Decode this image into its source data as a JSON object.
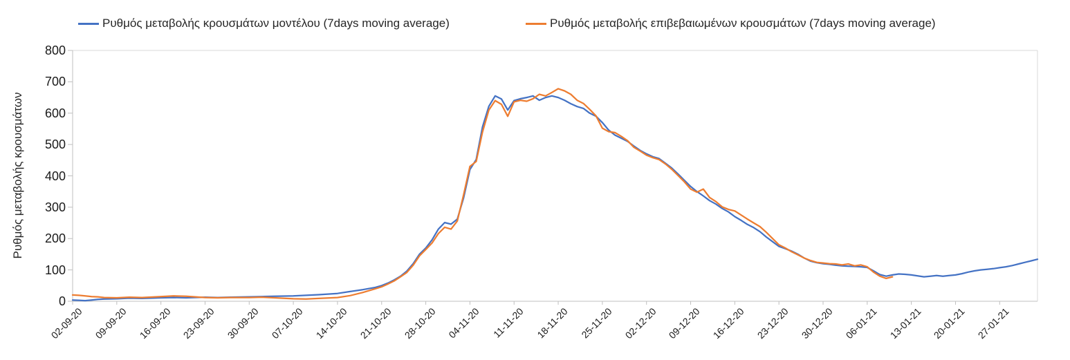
{
  "chart_data": {
    "type": "line",
    "title": "",
    "xlabel": "",
    "ylabel": "Ρυθμός μεταβολής κρουσμάτων",
    "ylim": [
      0,
      800
    ],
    "yticks": [
      0,
      100,
      200,
      300,
      400,
      500,
      600,
      700,
      800
    ],
    "x_domain_days": [
      0,
      153
    ],
    "x_ticks": [
      {
        "label": "02-09-20",
        "day": 0
      },
      {
        "label": "09-09-20",
        "day": 7
      },
      {
        "label": "16-09-20",
        "day": 14
      },
      {
        "label": "23-09-20",
        "day": 21
      },
      {
        "label": "30-09-20",
        "day": 28
      },
      {
        "label": "07-10-20",
        "day": 35
      },
      {
        "label": "14-10-20",
        "day": 42
      },
      {
        "label": "21-10-20",
        "day": 49
      },
      {
        "label": "28-10-20",
        "day": 56
      },
      {
        "label": "04-11-20",
        "day": 63
      },
      {
        "label": "11-11-20",
        "day": 70
      },
      {
        "label": "18-11-20",
        "day": 77
      },
      {
        "label": "25-11-20",
        "day": 84
      },
      {
        "label": "02-12-20",
        "day": 91
      },
      {
        "label": "09-12-20",
        "day": 98
      },
      {
        "label": "16-12-20",
        "day": 105
      },
      {
        "label": "23-12-20",
        "day": 112
      },
      {
        "label": "30-12-20",
        "day": 119
      },
      {
        "label": "06-01-21",
        "day": 126
      },
      {
        "label": "13-01-21",
        "day": 133
      },
      {
        "label": "20-01-21",
        "day": 140
      },
      {
        "label": "27-01-21",
        "day": 147
      }
    ],
    "legend_position": "top",
    "grid": "top-line-only",
    "series": [
      {
        "name": "Ρυθμός μεταβολής κρουσμάτων μοντέλου (7days moving average)",
        "color": "#4472c4",
        "points": [
          [
            0,
            4
          ],
          [
            1,
            3
          ],
          [
            2,
            2
          ],
          [
            3,
            4
          ],
          [
            4,
            6
          ],
          [
            5,
            7
          ],
          [
            7,
            8
          ],
          [
            9,
            10
          ],
          [
            11,
            9
          ],
          [
            14,
            11
          ],
          [
            16,
            12
          ],
          [
            18,
            11
          ],
          [
            21,
            13
          ],
          [
            23,
            12
          ],
          [
            25,
            13
          ],
          [
            28,
            14
          ],
          [
            30,
            15
          ],
          [
            32,
            16
          ],
          [
            35,
            17
          ],
          [
            37,
            19
          ],
          [
            39,
            21
          ],
          [
            42,
            25
          ],
          [
            44,
            31
          ],
          [
            46,
            37
          ],
          [
            48,
            44
          ],
          [
            49,
            50
          ],
          [
            50,
            58
          ],
          [
            51,
            68
          ],
          [
            52,
            80
          ],
          [
            53,
            96
          ],
          [
            54,
            120
          ],
          [
            55,
            150
          ],
          [
            56,
            170
          ],
          [
            57,
            196
          ],
          [
            58,
            230
          ],
          [
            59,
            251
          ],
          [
            60,
            246
          ],
          [
            61,
            262
          ],
          [
            62,
            330
          ],
          [
            63,
            420
          ],
          [
            64,
            452
          ],
          [
            65,
            556
          ],
          [
            66,
            622
          ],
          [
            67,
            655
          ],
          [
            68,
            645
          ],
          [
            69,
            610
          ],
          [
            70,
            640
          ],
          [
            71,
            646
          ],
          [
            72,
            650
          ],
          [
            73,
            655
          ],
          [
            74,
            641
          ],
          [
            75,
            650
          ],
          [
            76,
            655
          ],
          [
            77,
            650
          ],
          [
            78,
            641
          ],
          [
            79,
            630
          ],
          [
            80,
            621
          ],
          [
            81,
            615
          ],
          [
            82,
            600
          ],
          [
            83,
            590
          ],
          [
            84,
            570
          ],
          [
            85,
            546
          ],
          [
            86,
            530
          ],
          [
            87,
            520
          ],
          [
            88,
            510
          ],
          [
            89,
            495
          ],
          [
            90,
            481
          ],
          [
            91,
            470
          ],
          [
            92,
            461
          ],
          [
            93,
            455
          ],
          [
            94,
            440
          ],
          [
            95,
            425
          ],
          [
            96,
            406
          ],
          [
            97,
            386
          ],
          [
            98,
            366
          ],
          [
            99,
            350
          ],
          [
            100,
            336
          ],
          [
            101,
            321
          ],
          [
            102,
            310
          ],
          [
            103,
            296
          ],
          [
            104,
            285
          ],
          [
            105,
            270
          ],
          [
            106,
            258
          ],
          [
            107,
            245
          ],
          [
            108,
            235
          ],
          [
            109,
            222
          ],
          [
            110,
            205
          ],
          [
            111,
            190
          ],
          [
            112,
            175
          ],
          [
            113,
            168
          ],
          [
            114,
            160
          ],
          [
            115,
            150
          ],
          [
            116,
            138
          ],
          [
            117,
            128
          ],
          [
            118,
            123
          ],
          [
            119,
            120
          ],
          [
            120,
            118
          ],
          [
            121,
            115
          ],
          [
            122,
            113
          ],
          [
            123,
            112
          ],
          [
            124,
            111
          ],
          [
            125,
            110
          ],
          [
            126,
            108
          ],
          [
            127,
            97
          ],
          [
            128,
            85
          ],
          [
            129,
            80
          ],
          [
            130,
            84
          ],
          [
            131,
            87
          ],
          [
            132,
            86
          ],
          [
            133,
            84
          ],
          [
            134,
            81
          ],
          [
            135,
            78
          ],
          [
            136,
            80
          ],
          [
            137,
            82
          ],
          [
            138,
            80
          ],
          [
            139,
            82
          ],
          [
            140,
            84
          ],
          [
            141,
            88
          ],
          [
            142,
            93
          ],
          [
            143,
            97
          ],
          [
            144,
            100
          ],
          [
            145,
            102
          ],
          [
            146,
            104
          ],
          [
            147,
            107
          ],
          [
            148,
            110
          ],
          [
            149,
            114
          ],
          [
            150,
            119
          ],
          [
            151,
            124
          ],
          [
            152,
            129
          ],
          [
            153,
            134
          ]
        ]
      },
      {
        "name": "Ρυθμός μεταβολής επιβεβαιωμένων κρουσμάτων (7days moving average)",
        "color": "#ed7d31",
        "points": [
          [
            0,
            20
          ],
          [
            1,
            19
          ],
          [
            2,
            17
          ],
          [
            3,
            15
          ],
          [
            4,
            14
          ],
          [
            5,
            12
          ],
          [
            7,
            11
          ],
          [
            9,
            13
          ],
          [
            11,
            12
          ],
          [
            14,
            15
          ],
          [
            16,
            17
          ],
          [
            18,
            16
          ],
          [
            21,
            12
          ],
          [
            23,
            11
          ],
          [
            25,
            12
          ],
          [
            28,
            12
          ],
          [
            30,
            13
          ],
          [
            32,
            11
          ],
          [
            35,
            8
          ],
          [
            37,
            7
          ],
          [
            39,
            9
          ],
          [
            42,
            12
          ],
          [
            44,
            18
          ],
          [
            46,
            28
          ],
          [
            48,
            40
          ],
          [
            49,
            46
          ],
          [
            50,
            55
          ],
          [
            51,
            65
          ],
          [
            52,
            78
          ],
          [
            53,
            92
          ],
          [
            54,
            115
          ],
          [
            55,
            145
          ],
          [
            56,
            165
          ],
          [
            57,
            186
          ],
          [
            58,
            216
          ],
          [
            59,
            236
          ],
          [
            60,
            230
          ],
          [
            61,
            256
          ],
          [
            62,
            340
          ],
          [
            63,
            430
          ],
          [
            64,
            446
          ],
          [
            65,
            540
          ],
          [
            66,
            610
          ],
          [
            67,
            640
          ],
          [
            68,
            628
          ],
          [
            69,
            590
          ],
          [
            70,
            636
          ],
          [
            71,
            641
          ],
          [
            72,
            638
          ],
          [
            73,
            646
          ],
          [
            74,
            660
          ],
          [
            75,
            655
          ],
          [
            76,
            666
          ],
          [
            77,
            678
          ],
          [
            78,
            671
          ],
          [
            79,
            660
          ],
          [
            80,
            641
          ],
          [
            81,
            631
          ],
          [
            82,
            612
          ],
          [
            83,
            591
          ],
          [
            84,
            552
          ],
          [
            85,
            541
          ],
          [
            86,
            538
          ],
          [
            87,
            526
          ],
          [
            88,
            512
          ],
          [
            89,
            491
          ],
          [
            90,
            479
          ],
          [
            91,
            466
          ],
          [
            92,
            458
          ],
          [
            93,
            452
          ],
          [
            94,
            438
          ],
          [
            95,
            421
          ],
          [
            96,
            401
          ],
          [
            97,
            381
          ],
          [
            98,
            358
          ],
          [
            99,
            348
          ],
          [
            100,
            358
          ],
          [
            101,
            331
          ],
          [
            102,
            318
          ],
          [
            103,
            301
          ],
          [
            104,
            293
          ],
          [
            105,
            288
          ],
          [
            106,
            275
          ],
          [
            107,
            262
          ],
          [
            108,
            250
          ],
          [
            109,
            238
          ],
          [
            110,
            220
          ],
          [
            111,
            200
          ],
          [
            112,
            180
          ],
          [
            113,
            170
          ],
          [
            114,
            158
          ],
          [
            115,
            148
          ],
          [
            116,
            138
          ],
          [
            117,
            130
          ],
          [
            118,
            124
          ],
          [
            119,
            122
          ],
          [
            120,
            120
          ],
          [
            121,
            119
          ],
          [
            122,
            116
          ],
          [
            123,
            119
          ],
          [
            124,
            113
          ],
          [
            125,
            116
          ],
          [
            126,
            110
          ],
          [
            127,
            93
          ],
          [
            128,
            80
          ],
          [
            129,
            73
          ],
          [
            130,
            78
          ]
        ]
      }
    ]
  }
}
